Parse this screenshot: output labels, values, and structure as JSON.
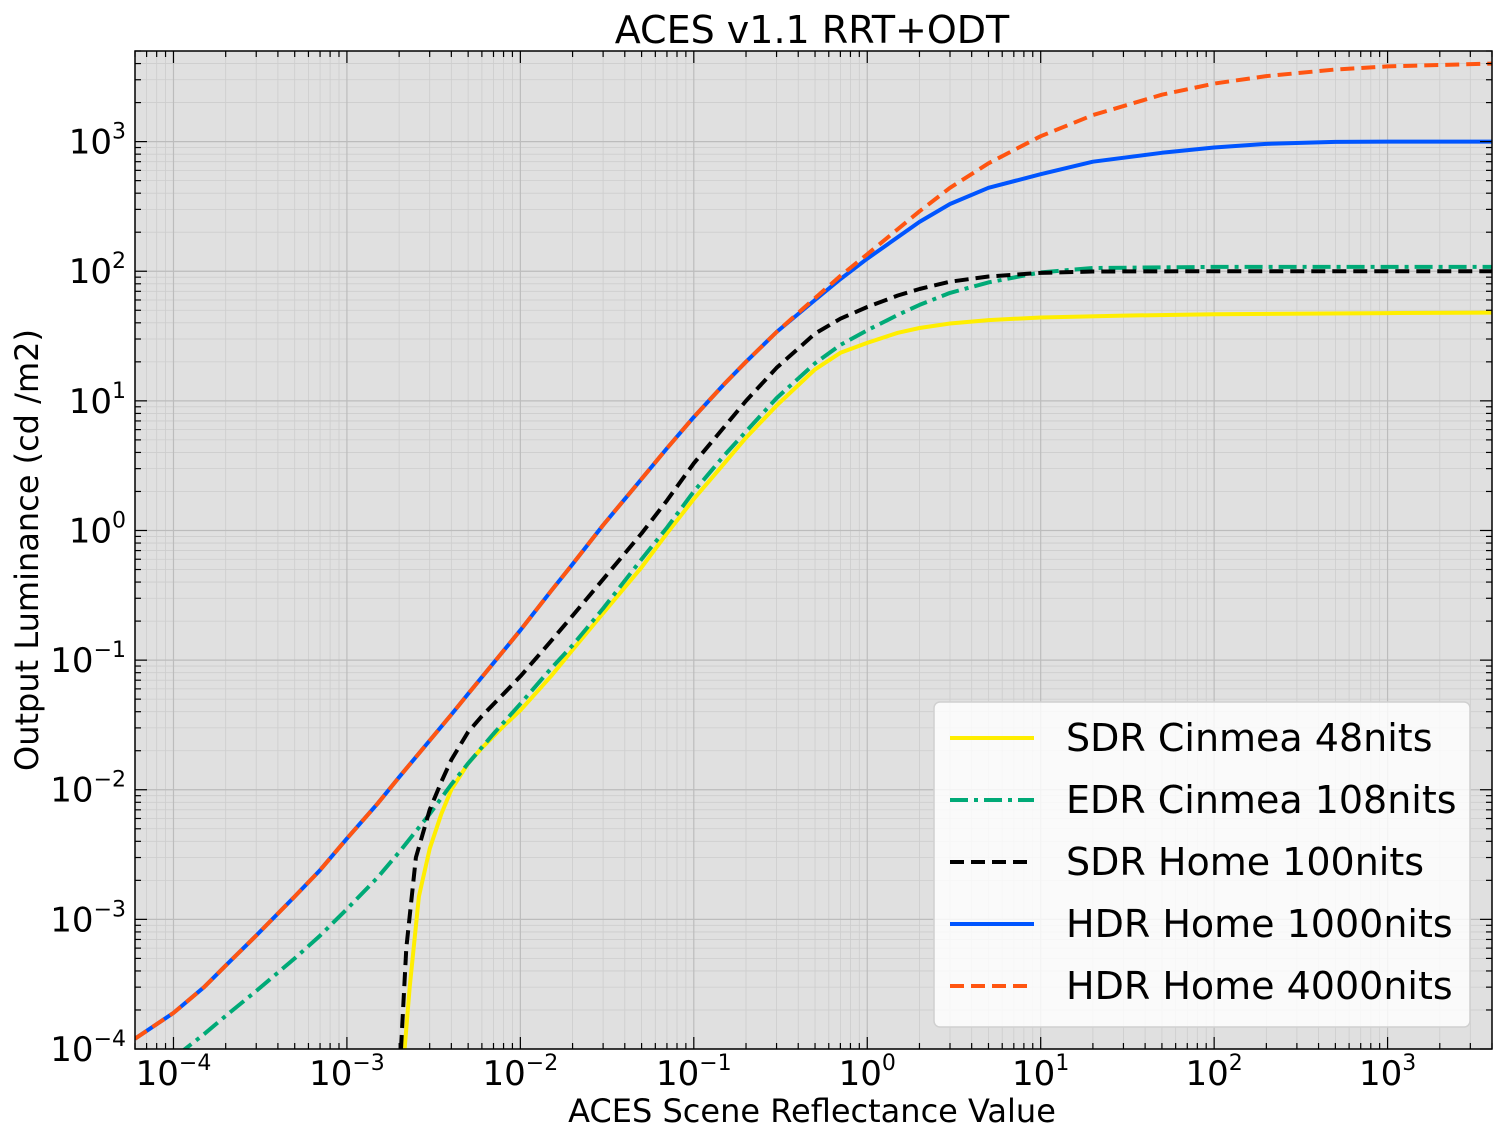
{
  "chart_data": {
    "type": "line",
    "title": "ACES v1.1 RRT+ODT",
    "xlabel": "ACES Scene Reflectance Value",
    "ylabel": "Output Luminance (cd /m2)",
    "xscale": "log",
    "yscale": "log",
    "xlim": [
      6e-05,
      4000
    ],
    "ylim": [
      0.0001,
      5000
    ],
    "x_ticks": [
      {
        "base": "10",
        "exp": "−4",
        "value": 0.0001
      },
      {
        "base": "10",
        "exp": "−3",
        "value": 0.001
      },
      {
        "base": "10",
        "exp": "−2",
        "value": 0.01
      },
      {
        "base": "10",
        "exp": "−1",
        "value": 0.1
      },
      {
        "base": "10",
        "exp": "0",
        "value": 1
      },
      {
        "base": "10",
        "exp": "1",
        "value": 10
      },
      {
        "base": "10",
        "exp": "2",
        "value": 100
      },
      {
        "base": "10",
        "exp": "3",
        "value": 1000
      }
    ],
    "y_ticks": [
      {
        "base": "10",
        "exp": "−4",
        "value": 0.0001
      },
      {
        "base": "10",
        "exp": "−3",
        "value": 0.001
      },
      {
        "base": "10",
        "exp": "−2",
        "value": 0.01
      },
      {
        "base": "10",
        "exp": "−1",
        "value": 0.1
      },
      {
        "base": "10",
        "exp": "0",
        "value": 1
      },
      {
        "base": "10",
        "exp": "1",
        "value": 10
      },
      {
        "base": "10",
        "exp": "2",
        "value": 100
      },
      {
        "base": "10",
        "exp": "3",
        "value": 1000
      }
    ],
    "grid": true,
    "background": "#e0e0e0",
    "legend_position": "lower-right",
    "series": [
      {
        "name": "SDR Cinmea 48nits",
        "color": "#ffee00",
        "dash": "solid",
        "x": [
          0.00215,
          0.0023,
          0.0026,
          0.003,
          0.0035,
          0.004,
          0.005,
          0.006,
          0.008,
          0.01,
          0.015,
          0.02,
          0.03,
          0.05,
          0.07,
          0.1,
          0.15,
          0.2,
          0.3,
          0.5,
          0.7,
          1,
          1.5,
          2,
          3,
          5,
          10,
          30,
          100,
          1000,
          4000
        ],
        "y": [
          0.0001,
          0.0003,
          0.0015,
          0.0035,
          0.0065,
          0.01,
          0.016,
          0.021,
          0.031,
          0.041,
          0.075,
          0.12,
          0.23,
          0.52,
          0.95,
          1.75,
          3.3,
          5.2,
          9.2,
          17.5,
          23.5,
          28,
          33.5,
          36.5,
          39.5,
          42,
          44,
          45.5,
          46.5,
          47.5,
          48
        ]
      },
      {
        "name": "EDR Cinmea 108nits",
        "color": "#00aa77",
        "dash": "dashdot",
        "x": [
          7.5e-05,
          0.0001,
          0.00015,
          0.0002,
          0.0003,
          0.0005,
          0.0007,
          0.001,
          0.0015,
          0.002,
          0.003,
          0.004,
          0.005,
          0.007,
          0.01,
          0.015,
          0.02,
          0.03,
          0.05,
          0.07,
          0.1,
          0.15,
          0.2,
          0.3,
          0.5,
          0.7,
          1,
          1.5,
          2,
          3,
          5,
          10,
          20,
          100,
          1000,
          4000
        ],
        "y": [
          6e-05,
          8.5e-05,
          0.00013,
          0.00018,
          0.00028,
          0.0005,
          0.00075,
          0.0012,
          0.0021,
          0.0033,
          0.0065,
          0.011,
          0.016,
          0.027,
          0.046,
          0.086,
          0.13,
          0.25,
          0.6,
          1.05,
          2,
          3.8,
          5.8,
          10.5,
          19.5,
          27,
          35,
          46,
          55,
          68,
          82,
          98,
          106,
          108,
          108,
          108
        ]
      },
      {
        "name": "SDR Home 100nits",
        "color": "#000000",
        "dash": "dashed",
        "x": [
          0.00205,
          0.0022,
          0.0025,
          0.003,
          0.0035,
          0.004,
          0.005,
          0.006,
          0.008,
          0.01,
          0.015,
          0.02,
          0.03,
          0.05,
          0.07,
          0.1,
          0.15,
          0.2,
          0.3,
          0.5,
          0.7,
          1,
          1.5,
          2,
          3,
          5,
          10,
          20,
          100,
          1000,
          4000
        ],
        "y": [
          0.0001,
          0.0006,
          0.003,
          0.007,
          0.0115,
          0.017,
          0.028,
          0.037,
          0.055,
          0.075,
          0.14,
          0.22,
          0.42,
          0.95,
          1.7,
          3.3,
          6.3,
          10,
          18,
          33,
          43,
          53,
          65,
          73,
          83,
          91,
          97,
          99.5,
          100,
          100,
          100
        ]
      },
      {
        "name": "HDR Home 1000nits",
        "color": "#0055ff",
        "dash": "solid",
        "x": [
          6e-05,
          0.0001,
          0.00015,
          0.0002,
          0.0003,
          0.0005,
          0.0007,
          0.001,
          0.0015,
          0.002,
          0.003,
          0.004,
          0.005,
          0.007,
          0.01,
          0.015,
          0.02,
          0.03,
          0.05,
          0.07,
          0.1,
          0.15,
          0.2,
          0.3,
          0.5,
          0.7,
          1,
          2,
          3,
          5,
          10,
          20,
          50,
          100,
          200,
          500,
          1000,
          4000
        ],
        "y": [
          0.00012,
          0.00019,
          0.0003,
          0.00044,
          0.00075,
          0.0015,
          0.0024,
          0.0042,
          0.0078,
          0.0125,
          0.024,
          0.038,
          0.055,
          0.095,
          0.17,
          0.34,
          0.55,
          1.1,
          2.5,
          4.3,
          7.5,
          13.5,
          20,
          34,
          60,
          87,
          125,
          240,
          330,
          440,
          560,
          700,
          820,
          900,
          960,
          995,
          1000,
          1000
        ]
      },
      {
        "name": "HDR Home 4000nits",
        "color": "#ff5511",
        "dash": "dashed",
        "x": [
          6e-05,
          0.0001,
          0.00015,
          0.0002,
          0.0003,
          0.0005,
          0.0007,
          0.001,
          0.0015,
          0.002,
          0.003,
          0.004,
          0.005,
          0.007,
          0.01,
          0.015,
          0.02,
          0.03,
          0.05,
          0.07,
          0.1,
          0.15,
          0.2,
          0.3,
          0.5,
          0.7,
          1,
          2,
          3,
          5,
          10,
          20,
          50,
          100,
          200,
          500,
          1000,
          4000
        ],
        "y": [
          0.00012,
          0.00019,
          0.0003,
          0.00044,
          0.00075,
          0.0015,
          0.0024,
          0.0042,
          0.0078,
          0.0125,
          0.024,
          0.038,
          0.055,
          0.095,
          0.17,
          0.34,
          0.55,
          1.1,
          2.5,
          4.3,
          7.5,
          13.5,
          20,
          34,
          62,
          92,
          135,
          290,
          440,
          680,
          1100,
          1600,
          2300,
          2800,
          3200,
          3600,
          3800,
          4000
        ]
      }
    ]
  }
}
